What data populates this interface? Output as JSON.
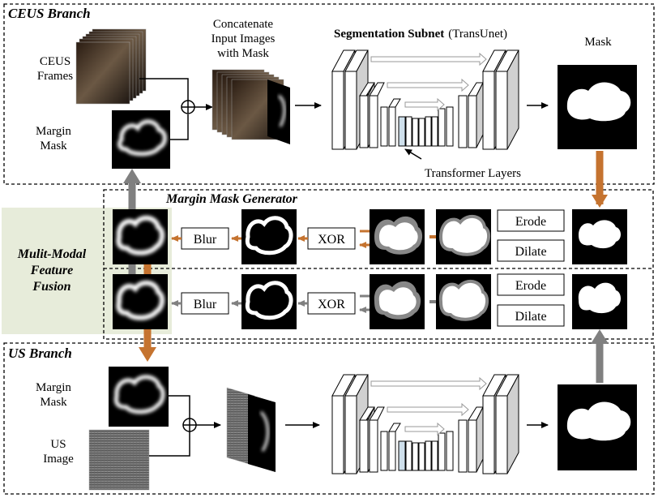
{
  "branches": {
    "ceus": "CEUS Branch",
    "generator": "Margin Mask Generator",
    "us": "US Branch"
  },
  "fusion": {
    "line1": "Mulit-Modal",
    "line2": "Feature",
    "line3": "Fusion"
  },
  "ceus": {
    "frames_line1": "CEUS",
    "frames_line2": "Frames",
    "margin_line1": "Margin",
    "margin_line2": "Mask",
    "concat_line1": "Concatenate",
    "concat_line2": "Input Images",
    "concat_line3": "with Mask",
    "subnet_bold": "Segmentation Subnet",
    "subnet_rest": "(TransUnet)",
    "mask": "Mask",
    "transformer": "Transformer Layers"
  },
  "generator": {
    "blur": "Blur",
    "xor": "XOR",
    "erode": "Erode",
    "dilate": "Dilate"
  },
  "us": {
    "margin_line1": "Margin",
    "margin_line2": "Mask",
    "image_line1": "US",
    "image_line2": "Image"
  },
  "colors": {
    "orange": "#c5732f",
    "gray": "#808080",
    "fusion_bg": "#e7ecda",
    "transformer": "#cfe0ec"
  }
}
